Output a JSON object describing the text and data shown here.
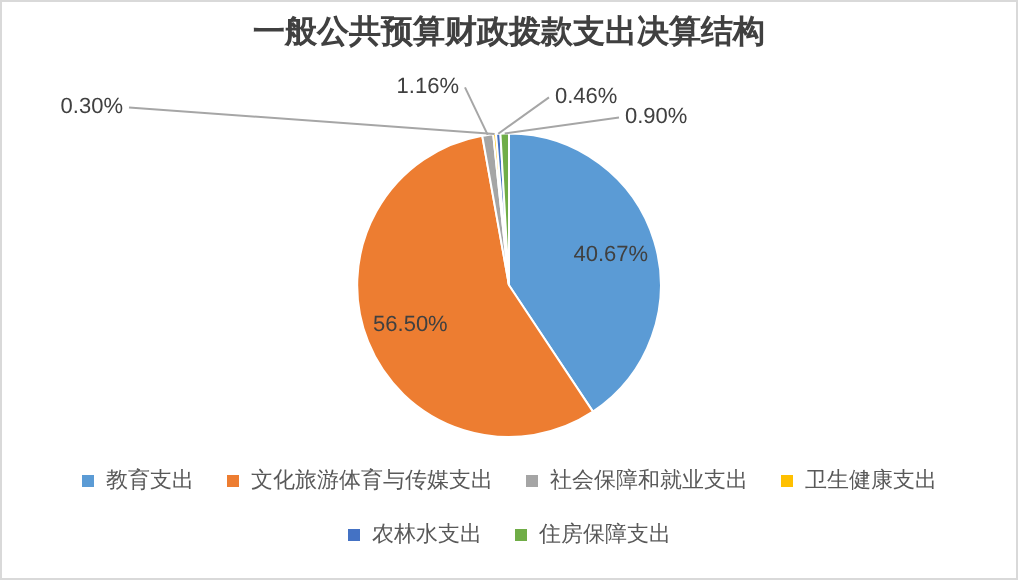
{
  "chart_data": {
    "type": "pie",
    "title": "一般公共预算财政拨款支出决算结构",
    "categories": [
      "教育支出",
      "文化旅游体育与传媒支出",
      "社会保障和就业支出",
      "卫生健康支出",
      "农林水支出",
      "住房保障支出"
    ],
    "values": [
      40.67,
      56.5,
      1.16,
      0.3,
      0.46,
      0.9
    ],
    "colors": [
      "#5b9bd5",
      "#ed7d31",
      "#a5a5a5",
      "#ffc000",
      "#4472c4",
      "#70ad47"
    ],
    "value_labels": [
      "40.67%",
      "56.50%",
      "1.16%",
      "0.30%",
      "0.46%",
      "0.90%"
    ],
    "legend": "bottom"
  }
}
